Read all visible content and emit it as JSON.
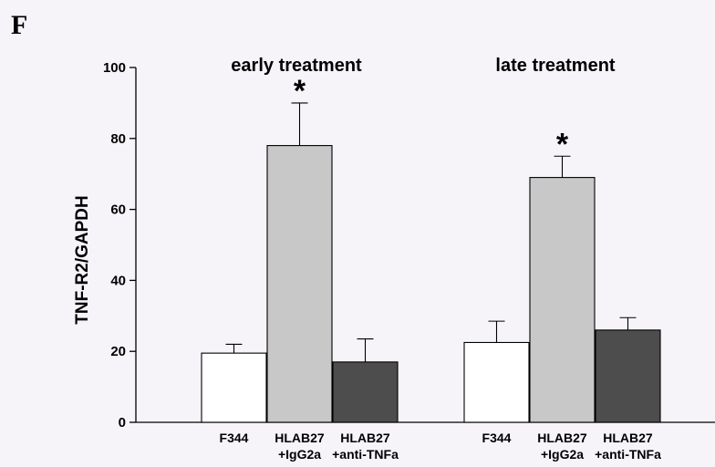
{
  "panel_label": "F",
  "chart_data": {
    "type": "bar",
    "ylabel": "TNF-R2/GAPDH",
    "ylim": [
      0,
      100
    ],
    "yticks": [
      0,
      20,
      40,
      60,
      80,
      100
    ],
    "groups": [
      {
        "title": "early treatment",
        "bars": [
          {
            "label_lines": [
              "F344"
            ],
            "value": 19.5,
            "error": 2.5,
            "color": "#ffffff",
            "significance": ""
          },
          {
            "label_lines": [
              "HLAB27",
              "+IgG2a"
            ],
            "value": 78,
            "error": 12,
            "color": "#c8c8c8",
            "significance": "*"
          },
          {
            "label_lines": [
              "HLAB27",
              "+anti-TNFa"
            ],
            "value": 17,
            "error": 6.5,
            "color": "#4d4d4d",
            "significance": ""
          }
        ]
      },
      {
        "title": "late treatment",
        "bars": [
          {
            "label_lines": [
              "F344"
            ],
            "value": 22.5,
            "error": 6,
            "color": "#ffffff",
            "significance": ""
          },
          {
            "label_lines": [
              "HLAB27",
              "+IgG2a"
            ],
            "value": 69,
            "error": 6,
            "color": "#c8c8c8",
            "significance": "*"
          },
          {
            "label_lines": [
              "HLAB27",
              "+anti-TNFa"
            ],
            "value": 26,
            "error": 3.5,
            "color": "#4d4d4d",
            "significance": ""
          }
        ]
      }
    ],
    "grid": false,
    "legend": "none"
  }
}
